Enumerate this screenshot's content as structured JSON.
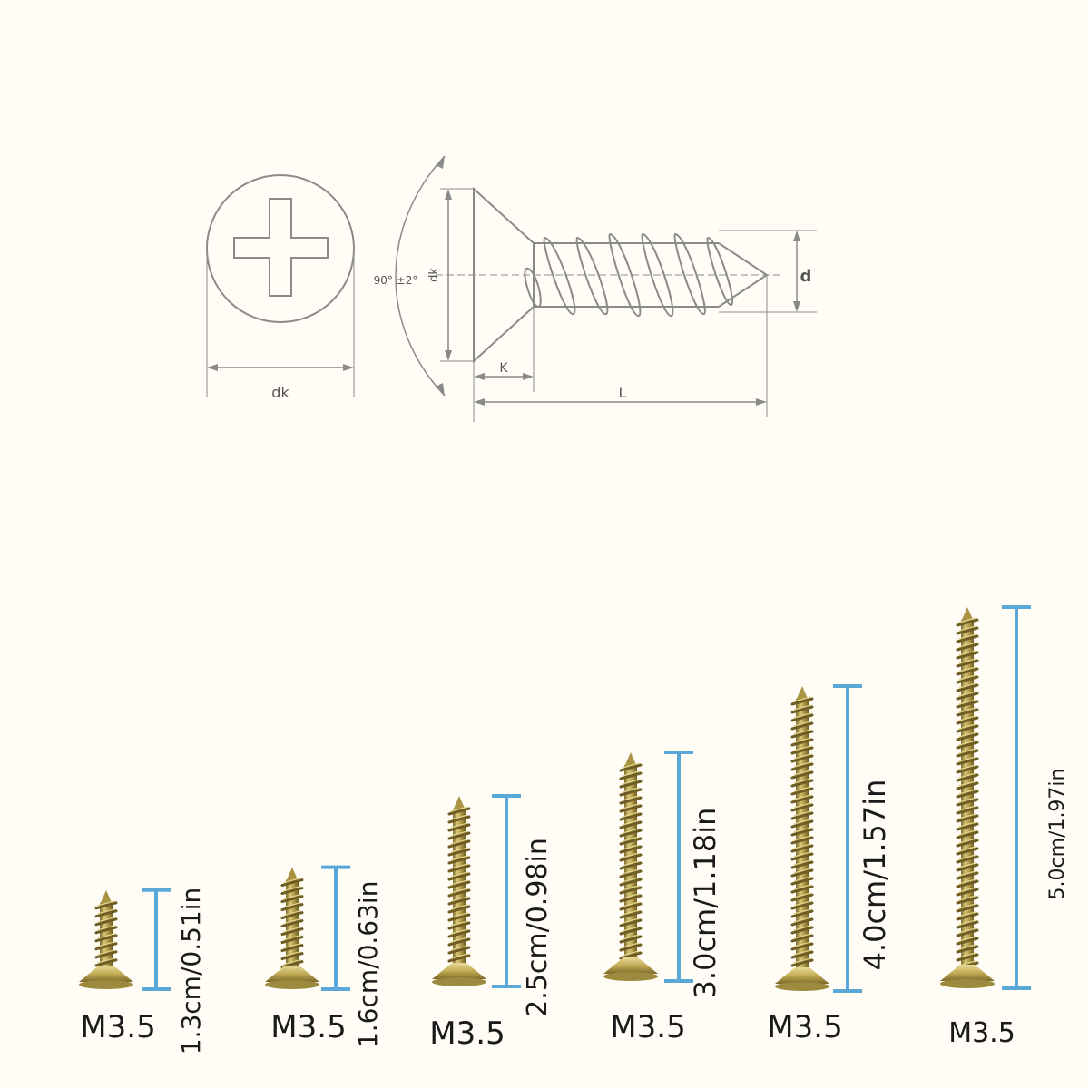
{
  "drawing": {
    "head_diameter_label": "dk",
    "side_head_label": "dk",
    "thread_diameter_label": "d",
    "head_height_label": "K",
    "length_label": "L",
    "angle_label": "90° ±2°",
    "line_color": "#8a8a8a"
  },
  "screws": [
    {
      "spec": "M3.5",
      "length_label": "1.3cm/0.51in",
      "length_cm": 1.3
    },
    {
      "spec": "M3.5",
      "length_label": "1.6cm/0.63in",
      "length_cm": 1.6
    },
    {
      "spec": "M3.5",
      "length_label": "2.5cm/0.98in",
      "length_cm": 2.5
    },
    {
      "spec": "M3.5",
      "length_label": "3.0cm/1.18in",
      "length_cm": 3.0
    },
    {
      "spec": "M3.5",
      "length_label": "4.0cm/1.57in",
      "length_cm": 4.0
    },
    {
      "spec": "M3.5",
      "length_label": "5.0cm/1.97in",
      "length_cm": 5.0
    }
  ],
  "colors": {
    "background": "#fffdf6",
    "bracket": "#5aa8d8",
    "screw_body": "#b8a24e",
    "screw_dark": "#7d6a2a",
    "screw_light": "#e4d58c"
  }
}
